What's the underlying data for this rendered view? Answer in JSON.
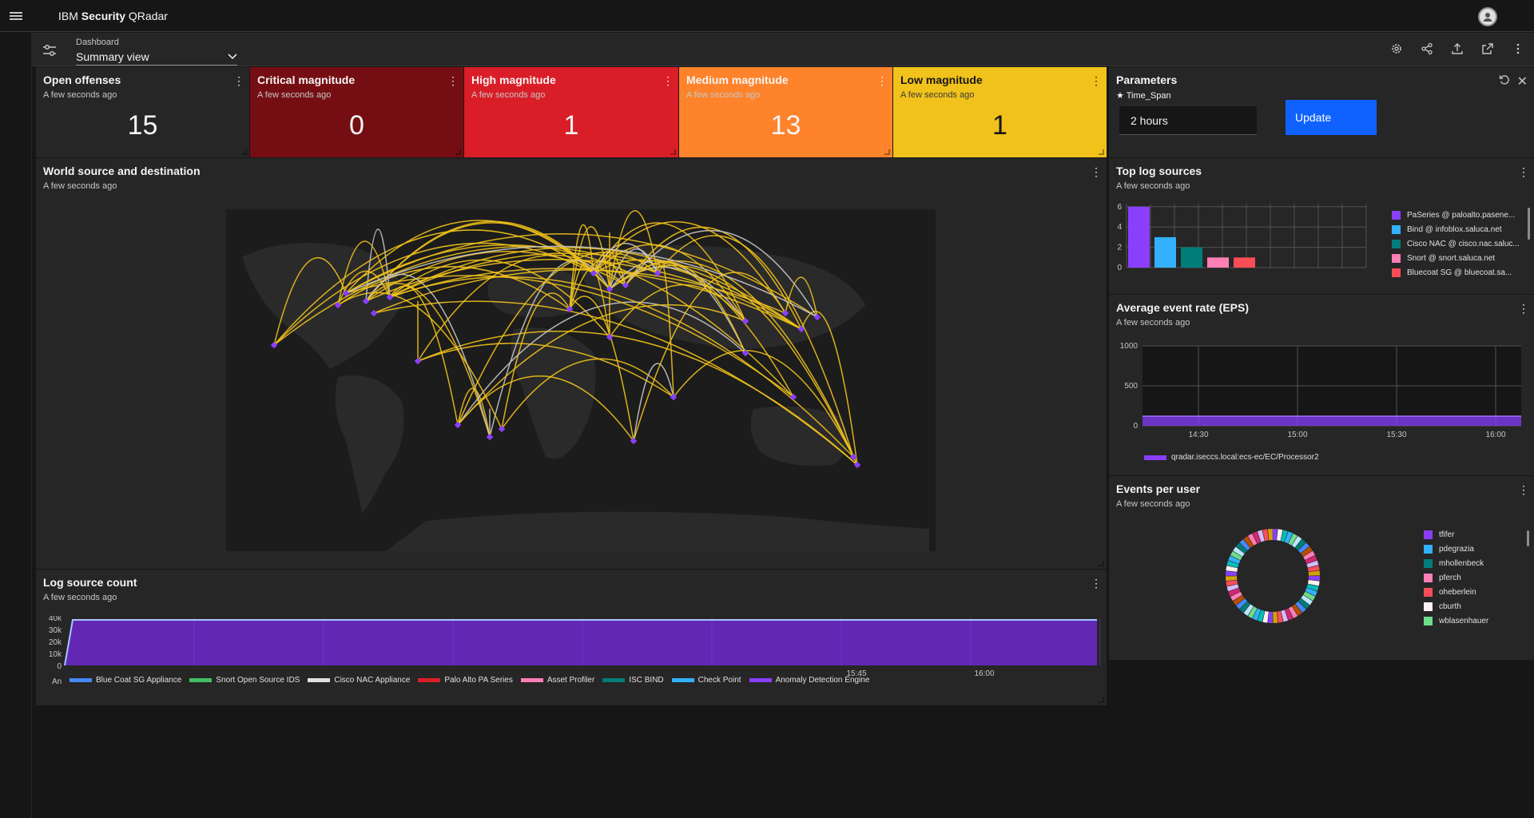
{
  "app": {
    "brand_prefix": "IBM ",
    "brand_bold": "Security",
    "brand_suffix": " QRadar"
  },
  "toolbar": {
    "dashboard_label": "Dashboard",
    "dashboard_value": "Summary view",
    "icons": [
      "settings-icon",
      "share-icon",
      "upload-icon",
      "launch-icon",
      "overflow-icon"
    ]
  },
  "tiles": {
    "open": {
      "title": "Open offenses",
      "updated": "A few seconds ago",
      "value": "15"
    },
    "critical": {
      "title": "Critical magnitude",
      "updated": "A few seconds ago",
      "value": "0",
      "color": "#750e13"
    },
    "high": {
      "title": "High magnitude",
      "updated": "A few seconds ago",
      "value": "1",
      "color": "#da1e28"
    },
    "medium": {
      "title": "Medium magnitude",
      "updated": "A few seconds ago",
      "value": "13",
      "color": "#ff832b"
    },
    "low": {
      "title": "Low magnitude",
      "updated": "A few seconds ago",
      "value": "1",
      "color": "#f1c21b"
    }
  },
  "parameters": {
    "title": "Parameters",
    "param_name": "Time_Span",
    "time_span_value": "2 hours",
    "update_label": "Update"
  },
  "world": {
    "title": "World source and destination",
    "updated": "A few seconds ago"
  },
  "top_log_sources": {
    "title": "Top log sources",
    "updated": "A few seconds ago",
    "legend": [
      {
        "label": "PaSeries @ paloalto.pasene...",
        "color": "#8a3ffc"
      },
      {
        "label": "Bind @ infoblox.saluca.net",
        "color": "#33b1ff"
      },
      {
        "label": "Cisco NAC @ cisco.nac.saluc...",
        "color": "#007d79"
      },
      {
        "label": "Snort @ snort.saluca.net",
        "color": "#ff7eb6"
      },
      {
        "label": "Bluecoat SG @ bluecoat.sa...",
        "color": "#fa4d56"
      }
    ]
  },
  "eps": {
    "title": "Average event rate (EPS)",
    "updated": "A few seconds ago",
    "series_name": "qradar.iseccs.local:ecs-ec/EC/Processor2"
  },
  "events_per_user": {
    "title": "Events per user",
    "updated": "A few seconds ago",
    "legend": [
      {
        "label": "tfifer",
        "color": "#8a3ffc"
      },
      {
        "label": "pdegrazia",
        "color": "#33b1ff"
      },
      {
        "label": "mhollenbeck",
        "color": "#007d79"
      },
      {
        "label": "pferch",
        "color": "#ff7eb6"
      },
      {
        "label": "oheberlein",
        "color": "#fa4d56"
      },
      {
        "label": "cburth",
        "color": "#fff1f1"
      },
      {
        "label": "wblasenhauer",
        "color": "#6fdc8c"
      }
    ]
  },
  "log_source_count": {
    "title": "Log source count",
    "updated": "A few seconds ago",
    "y_ticks": [
      "40k",
      "30k",
      "20k",
      "10k",
      "0"
    ],
    "x_ticks": [
      "15:45",
      "16:00"
    ],
    "x_prefix": "An",
    "legend": [
      {
        "label": "Blue Coat SG Appliance",
        "color": "#4589ff"
      },
      {
        "label": "Snort Open Source IDS",
        "color": "#42be65"
      },
      {
        "label": "Cisco NAC Appliance",
        "color": "#e0e0e0"
      },
      {
        "label": "Palo Alto PA Series",
        "color": "#da1e28"
      },
      {
        "label": "Asset Profiler",
        "color": "#ff7eb6"
      },
      {
        "label": "ISC BIND",
        "color": "#007d79"
      },
      {
        "label": "Check Point",
        "color": "#33b1ff"
      },
      {
        "label": "Anomaly Detection Engine",
        "color": "#8a3ffc"
      }
    ]
  },
  "chart_data": [
    {
      "type": "bar",
      "title": "Top log sources",
      "categories": [
        "PaSeries @ paloalto.pasene...",
        "Bind @ infoblox.saluca.net",
        "Cisco NAC @ cisco.nac.saluc...",
        "Snort @ snort.saluca.net",
        "Bluecoat SG @ bluecoat.sa..."
      ],
      "values": [
        6,
        3,
        2,
        1,
        1
      ],
      "y_ticks": [
        "6",
        "4",
        "2",
        "0"
      ],
      "ylim": [
        0,
        6.3
      ],
      "grid": true,
      "legend_position": "right"
    },
    {
      "type": "area",
      "title": "Average event rate (EPS)",
      "x_ticks": [
        "14:30",
        "15:00",
        "15:30",
        "16:00"
      ],
      "y_ticks": [
        "1000",
        "500",
        "0"
      ],
      "ylim": [
        0,
        1000
      ],
      "series": [
        {
          "name": "qradar.iseccs.local:ecs-ec/EC/Processor2",
          "approx_level": 120
        }
      ],
      "grid": true,
      "legend_position": "bottom"
    },
    {
      "type": "pie",
      "title": "Events per user",
      "donut": true,
      "categories": [
        "tfifer",
        "pdegrazia",
        "mhollenbeck",
        "pferch",
        "oheberlein",
        "cburth",
        "wblasenhauer"
      ],
      "values": [
        1,
        1,
        1,
        1,
        1,
        1,
        1
      ],
      "legend_position": "right"
    },
    {
      "type": "area",
      "title": "Log source count",
      "y_ticks": [
        "40k",
        "30k",
        "20k",
        "10k",
        "0"
      ],
      "x_ticks": [
        "15:45",
        "16:00"
      ],
      "ylim": [
        0,
        40000
      ],
      "series": [
        {
          "name": "Anomaly Detection Engine",
          "approx_level": 38000
        }
      ],
      "legend_position": "bottom"
    }
  ]
}
